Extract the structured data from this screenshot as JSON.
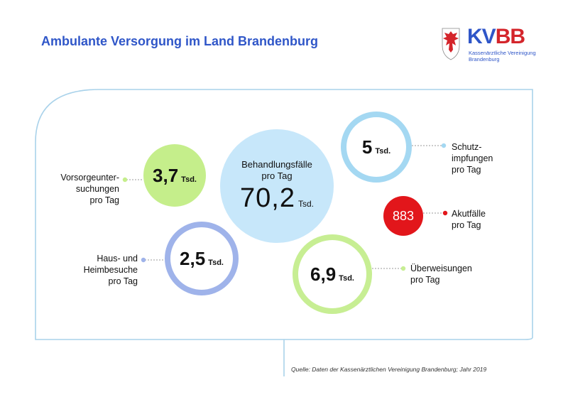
{
  "header": {
    "title": "Ambulante Versorgung im Land Brandenburg"
  },
  "logo": {
    "kv": "KV",
    "bb": "BB",
    "subline1": "Kassenärztliche Vereinigung",
    "subline2": "Brandenburg",
    "crest_icon": "brandenburg-eagle-crest",
    "colors": {
      "blue": "#2f56c8",
      "red": "#d4252b"
    }
  },
  "center": {
    "label_line1": "Behandlungsfälle",
    "label_line2": "pro Tag",
    "value": "70,2",
    "unit": "Tsd."
  },
  "items": {
    "vorsorge": {
      "value": "3,7",
      "unit": "Tsd.",
      "label_line1": "Vorsorgeunter-",
      "label_line2": "suchungen",
      "label_line3": "pro Tag",
      "color": "#c5ee8b"
    },
    "schutz": {
      "value": "5",
      "unit": "Tsd.",
      "label_line1": "Schutz-",
      "label_line2": "impfungen",
      "label_line3": "pro Tag",
      "color": "#a4d8f2"
    },
    "akut": {
      "value": "883",
      "label_line1": "Akutfälle",
      "label_line2": "pro Tag",
      "color": "#e2161b"
    },
    "haus": {
      "value": "2,5",
      "unit": "Tsd.",
      "label_line1": "Haus- und",
      "label_line2": "Heimbesuche",
      "label_line3": "pro Tag",
      "color": "#9fb3ea"
    },
    "ueber": {
      "value": "6,9",
      "unit": "Tsd.",
      "label_line1": "Überweisungen",
      "label_line2": "pro Tag",
      "color": "#c7ee93"
    }
  },
  "footer": {
    "source": "Quelle: Daten der Kassenärztlichen Vereinigung Brandenburg; Jahr 2019"
  },
  "colors": {
    "frame": "#a9d2ea",
    "title": "#2f56c8"
  }
}
